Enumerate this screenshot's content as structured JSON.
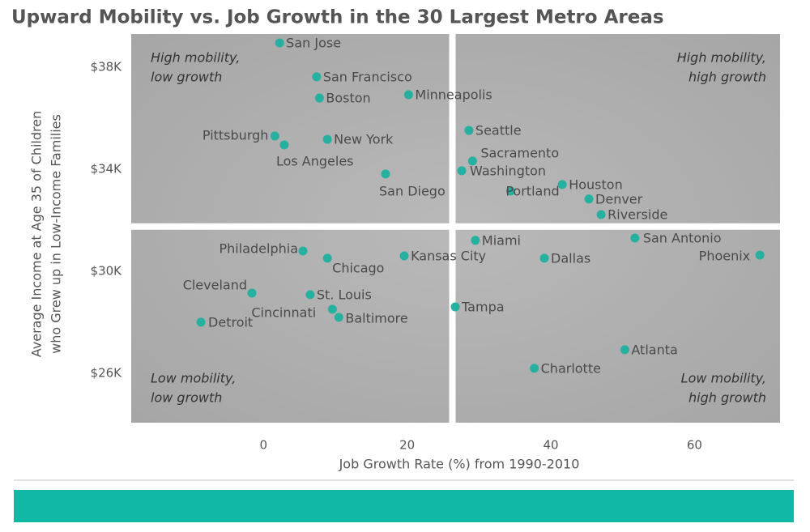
{
  "chart_data": {
    "type": "scatter",
    "title": "Upward Mobility vs. Job Growth in the 30 Largest Metro Areas",
    "x_label": "Job Growth Rate (%) from 1990-2010",
    "y_label": [
      "Average Income at Age 35 of Children",
      "who Grew up in Low-Income Families"
    ],
    "xlim": [
      -18.4,
      71.9
    ],
    "ylim": [
      24060,
      39300
    ],
    "xticks": [
      0,
      20,
      40,
      60
    ],
    "yticks": [
      {
        "value": 26000,
        "label": "$26K"
      },
      {
        "value": 30000,
        "label": "$30K"
      },
      {
        "value": 34000,
        "label": "$34K"
      },
      {
        "value": 38000,
        "label": "$38K"
      }
    ],
    "quadrant_lines": {
      "x": 26.3,
      "y": 31750
    },
    "annotations": [
      [
        "High mobility,",
        "low growth"
      ],
      [
        "High mobility,",
        "high growth"
      ],
      [
        "Low mobility,",
        "low growth"
      ],
      [
        "Low mobility,",
        "high growth"
      ]
    ],
    "color": "#26b0a0",
    "labels": [
      "San Jose",
      "San Francisco",
      "Boston",
      "Minneapolis",
      "Pittsburgh",
      "Los Angeles",
      "New York",
      "San Diego",
      "Seattle",
      "Sacramento",
      "Washington",
      "Portland",
      "Houston",
      "Denver",
      "Riverside",
      "San Antonio",
      "Phoenix",
      "Miami",
      "Dallas",
      "Kansas City",
      "Philadelphia",
      "Chicago",
      "Cleveland",
      "St. Louis",
      "Cincinnati",
      "Baltimore",
      "Tampa",
      "Detroit",
      "Atlanta",
      "Charlotte"
    ],
    "x": [
      2.25,
      7.4,
      7.8,
      20.2,
      1.6,
      2.9,
      8.9,
      17.0,
      28.6,
      29.1,
      27.6,
      34.4,
      41.6,
      45.3,
      47.0,
      51.7,
      69.1,
      29.5,
      39.1,
      19.6,
      5.5,
      8.9,
      -1.6,
      6.5,
      9.6,
      10.5,
      26.7,
      -8.7,
      50.3,
      37.7
    ],
    "y": [
      38950,
      37620,
      36790,
      36920,
      35300,
      34950,
      35170,
      33810,
      35520,
      34320,
      33940,
      33140,
      33400,
      32830,
      32220,
      31300,
      30630,
      31210,
      30510,
      30600,
      30790,
      30510,
      29140,
      29080,
      28510,
      28190,
      28600,
      28000,
      26920,
      26190
    ]
  }
}
